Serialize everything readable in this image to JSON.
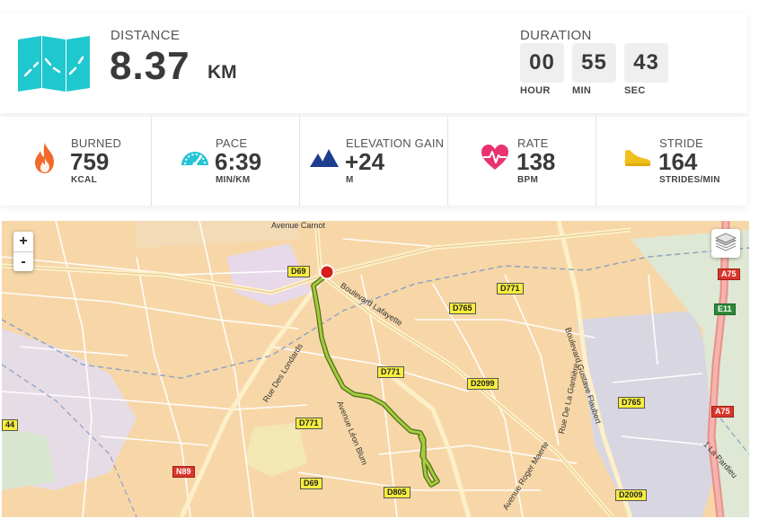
{
  "distance": {
    "label": "DISTANCE",
    "value": "8.37",
    "unit": "KM"
  },
  "duration": {
    "label": "DURATION",
    "hours": "00",
    "minutes": "55",
    "seconds": "43",
    "hour_label": "HOUR",
    "min_label": "MIN",
    "sec_label": "SEC"
  },
  "stats": [
    {
      "label": "BURNED",
      "value": "759",
      "unit": "KCAL",
      "icon": "flame-icon",
      "color": "#f26a2b"
    },
    {
      "label": "PACE",
      "value": "6:39",
      "unit": "MIN/KM",
      "icon": "speedometer-icon",
      "color": "#25c4d6"
    },
    {
      "label": "ELEVATION GAIN",
      "value": "+24",
      "unit": "M",
      "icon": "mountain-icon",
      "color": "#1d3d8f"
    },
    {
      "label": "RATE",
      "value": "138",
      "unit": "BPM",
      "icon": "heart-pulse-icon",
      "color": "#e8336f"
    },
    {
      "label": "STRIDE",
      "value": "164",
      "unit": "STRIDES/MIN",
      "icon": "shoe-icon",
      "color": "#f0c01c"
    }
  ],
  "map": {
    "zoom_in": "+",
    "zoom_out": "-",
    "roads": [
      "D69",
      "D771",
      "D765",
      "D771",
      "D2099",
      "D771",
      "D69",
      "D805",
      "D765",
      "D2009",
      "N89",
      "44"
    ],
    "highways": [
      "A75",
      "A75"
    ],
    "euro_routes": [
      "E11"
    ],
    "streets": [
      "Boulevard Lafayette",
      "Boulevard Gustave Flaubert",
      "Rue Des Londards",
      "Avenue Léon Blum",
      "Rue De La Gantière",
      "Avenue Roger Maerte",
      "Avenue Carnot",
      "1 La Pardieu"
    ],
    "colors": {
      "land": "#f7d7a8",
      "route": "#9dc13b",
      "start": "#d81b1b",
      "park": "#d9e6cf",
      "industrial": "#d8d6e0"
    }
  }
}
